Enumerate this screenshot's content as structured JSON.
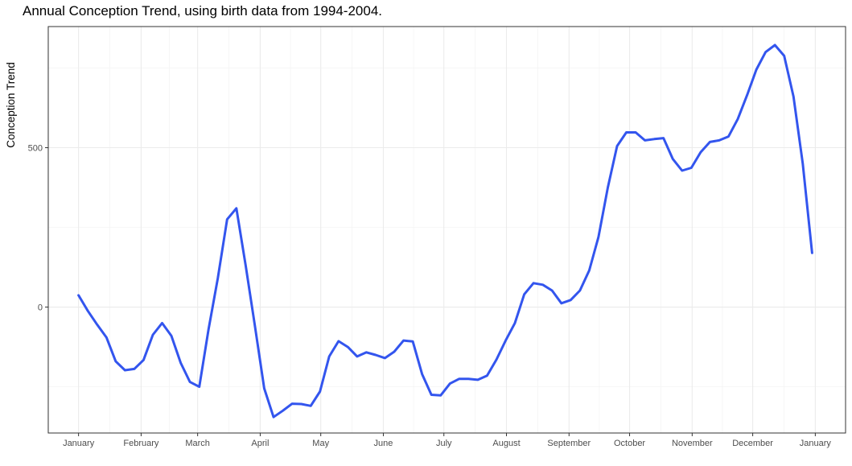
{
  "chart_data": {
    "type": "line",
    "title": "Annual Conception Trend, using birth data from 1994-2004.",
    "xlabel": "",
    "ylabel": "Conception Trend",
    "grid": true,
    "legend": "none",
    "line_color": "#3355ee",
    "x_ticks": [
      {
        "label": "January",
        "day": 0
      },
      {
        "label": "February",
        "day": 31
      },
      {
        "label": "March",
        "day": 59
      },
      {
        "label": "April",
        "day": 90
      },
      {
        "label": "May",
        "day": 120
      },
      {
        "label": "June",
        "day": 151
      },
      {
        "label": "July",
        "day": 181
      },
      {
        "label": "August",
        "day": 212
      },
      {
        "label": "September",
        "day": 243
      },
      {
        "label": "October",
        "day": 273
      },
      {
        "label": "November",
        "day": 304
      },
      {
        "label": "December",
        "day": 334
      },
      {
        "label": "January",
        "day": 365
      }
    ],
    "xlim": [
      -15,
      380
    ],
    "y_ticks": [
      0,
      500
    ],
    "ylim": [
      -395,
      880
    ],
    "series": [
      {
        "x": [
          0,
          4.6,
          9.2,
          13.8,
          18.4,
          23.0,
          27.6,
          32.2,
          36.8,
          41.4,
          46.0,
          50.6,
          55.2,
          59.8,
          64.4,
          69.0,
          73.6,
          78.2,
          82.8,
          87.4,
          92.0,
          96.6,
          101.2,
          105.8,
          110.4,
          115.0,
          119.6,
          124.2,
          128.8,
          133.4,
          138.0,
          142.6,
          147.2,
          151.8,
          156.4,
          161.0,
          165.6,
          170.2,
          174.8,
          179.4,
          184.0,
          188.6,
          193.2,
          197.8,
          202.4,
          207.0,
          211.6,
          216.2,
          220.8,
          225.4,
          230.0,
          234.6,
          239.2,
          243.8,
          248.4,
          253.0,
          257.6,
          262.2,
          266.8,
          271.4,
          276.0,
          280.6,
          285.2,
          289.8,
          294.4,
          299.0,
          303.6,
          308.2,
          312.8,
          317.4,
          322.0,
          326.6,
          331.2,
          335.8,
          340.4,
          345.0,
          349.6,
          354.2,
          358.8,
          363.4
        ],
        "y": [
          37,
          -12,
          -55,
          -95,
          -170,
          -198,
          -194,
          -166,
          -87,
          -50,
          -90,
          -175,
          -235,
          -250,
          -70,
          90,
          275,
          310,
          130,
          -60,
          -255,
          -345,
          -325,
          -303,
          -304,
          -310,
          -265,
          -155,
          -107,
          -125,
          -155,
          -142,
          -150,
          -160,
          -140,
          -105,
          -108,
          -210,
          -275,
          -277,
          -240,
          -225,
          -225,
          -228,
          -215,
          -165,
          -105,
          -50,
          40,
          75,
          70,
          52,
          12,
          22,
          52,
          115,
          220,
          375,
          505,
          548,
          548,
          523,
          527,
          530,
          465,
          428,
          437,
          486,
          518,
          523,
          535,
          590,
          665,
          745,
          800,
          822,
          788,
          660,
          450,
          170
        ]
      }
    ]
  }
}
